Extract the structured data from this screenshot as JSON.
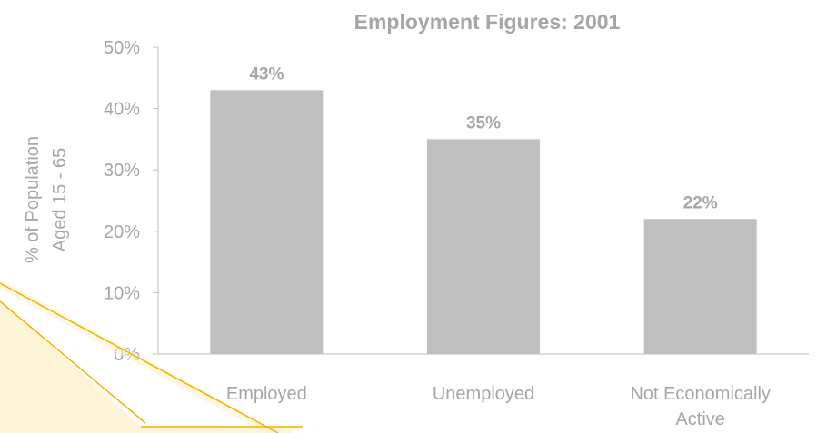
{
  "chart_data": {
    "type": "bar",
    "title": "Employment Figures:  2001",
    "xlabel": "",
    "ylabel_lines": [
      "% of Population",
      "Aged 15 - 65"
    ],
    "categories": [
      [
        "Employed"
      ],
      [
        "Unemployed"
      ],
      [
        "Not Economically",
        "Active"
      ]
    ],
    "values": [
      0.43,
      0.35,
      0.22
    ],
    "data_labels": [
      "43%",
      "35%",
      "22%"
    ],
    "ylim": [
      0,
      0.5
    ],
    "yticks": [
      0,
      0.1,
      0.2,
      0.3,
      0.4,
      0.5
    ],
    "ytick_labels": [
      "0%",
      "10%",
      "20%",
      "30%",
      "40%",
      "50%"
    ],
    "grid": false,
    "legend": "none"
  },
  "colors": {
    "bar": "#bfbfbf",
    "text": "#a6a6a6",
    "axis": "#bfbfbf",
    "callout_fill": "#fdf2cc",
    "callout_stroke": "#f0b400"
  }
}
